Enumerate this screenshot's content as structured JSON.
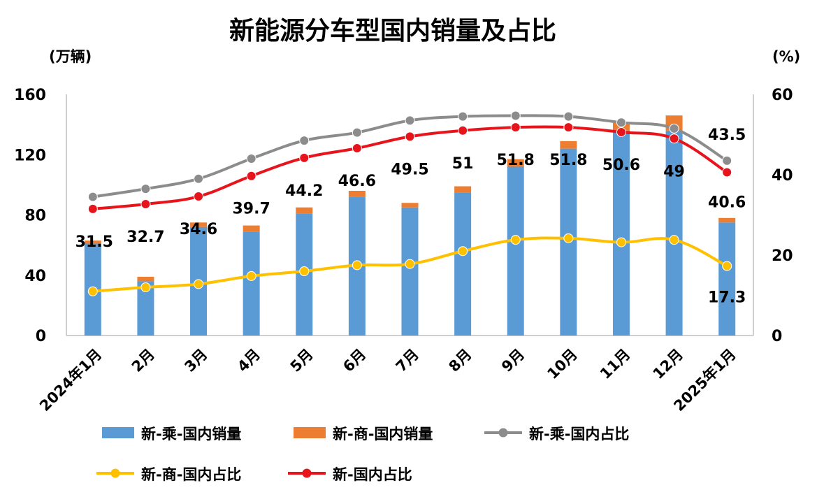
{
  "chart_data": {
    "type": "bar",
    "title": "新能源分车型国内销量及占比",
    "ylabel_left": "(万辆)",
    "ylabel_right": "(%)",
    "ylim_left": [
      0,
      160
    ],
    "ylim_right": [
      0,
      60
    ],
    "yticks_left": [
      "0",
      "40",
      "80",
      "120",
      "160"
    ],
    "yticks_right": [
      "0",
      "20",
      "40",
      "60"
    ],
    "categories": [
      "2024年1月",
      "2月",
      "3月",
      "4月",
      "5月",
      "6月",
      "7月",
      "8月",
      "9月",
      "10月",
      "11月",
      "12月",
      "2025年1月"
    ],
    "series": [
      {
        "name": "新-乘-国内销量",
        "type": "bar",
        "axis": "left",
        "stack": "sales",
        "color": "#5b9bd5",
        "values": [
          61,
          36,
          72,
          69,
          81,
          92,
          85,
          95,
          112,
          124,
          136,
          136,
          75
        ]
      },
      {
        "name": "新-商-国内销量",
        "type": "bar",
        "axis": "left",
        "stack": "sales",
        "color": "#ed7d31",
        "values": [
          2,
          3,
          3,
          4,
          4,
          4,
          3,
          4,
          5,
          5,
          5,
          10,
          3
        ]
      },
      {
        "name": "新-乘-国内占比",
        "type": "line",
        "axis": "right",
        "color": "#8c8c8c",
        "values": [
          34.5,
          36.5,
          39.0,
          44.0,
          48.5,
          50.5,
          53.5,
          54.5,
          54.7,
          54.5,
          53.0,
          51.5,
          43.5
        ]
      },
      {
        "name": "新-商-国内占比",
        "type": "line",
        "axis": "right",
        "color": "#ffc000",
        "values": [
          11.0,
          12.0,
          12.8,
          14.8,
          16.0,
          17.5,
          17.8,
          21.0,
          23.8,
          24.2,
          23.2,
          23.8,
          17.3
        ]
      },
      {
        "name": "新-国内占比",
        "type": "line",
        "axis": "right",
        "color": "#e8141c",
        "values": [
          31.5,
          32.7,
          34.6,
          39.7,
          44.2,
          46.6,
          49.5,
          51.0,
          51.8,
          51.8,
          50.6,
          49.0,
          40.6
        ]
      }
    ],
    "data_labels": [
      {
        "series": "新-国内占比",
        "values": [
          "31.5",
          "32.7",
          "34.6",
          "39.7",
          "44.2",
          "46.6",
          "49.5",
          "51",
          "51.8",
          "51.8",
          "50.6",
          "49",
          "40.6"
        ]
      },
      {
        "series": "新-乘-国内占比",
        "index": 12,
        "text": "43.5"
      },
      {
        "series": "新-商-国内占比",
        "index": 12,
        "text": "17.3"
      }
    ],
    "legend": {
      "position": "bottom",
      "rows": [
        [
          "新-乘-国内销量",
          "新-商-国内销量",
          "新-乘-国内占比"
        ],
        [
          "新-商-国内占比",
          "新-国内占比"
        ]
      ]
    }
  }
}
